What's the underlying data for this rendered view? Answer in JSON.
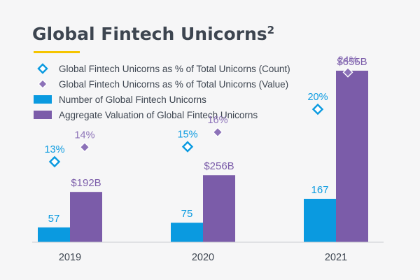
{
  "chart_data": {
    "type": "bar",
    "title": "Global Fintech Unicorns",
    "title_superscript": "2",
    "categories": [
      "2019",
      "2020",
      "2021"
    ],
    "series": [
      {
        "name": "Number of Global Fintech Unicorns",
        "kind": "bar",
        "color": "#0a9ae0",
        "values": [
          57,
          75,
          167
        ],
        "labels": [
          "57",
          "75",
          "167"
        ]
      },
      {
        "name": "Aggregate Valuation of Global Fintech Unicorns",
        "kind": "bar",
        "color": "#7b5ca9",
        "values": [
          192,
          256,
          655
        ],
        "unit": "$B",
        "labels": [
          "$192B",
          "$256B",
          "$655B"
        ]
      },
      {
        "name": "Global Fintech Unicorns as % of Total Unicorns (Count)",
        "kind": "marker",
        "marker": "diamond-outline",
        "color": "#0a9ae0",
        "values": [
          13,
          15,
          20
        ],
        "labels": [
          "13%",
          "15%",
          "20%"
        ]
      },
      {
        "name": "Global Fintech Unicorns as % of Total Unicorns (Value)",
        "kind": "marker",
        "marker": "diamond-filled",
        "color": "#8c72b8",
        "values": [
          14,
          16,
          24
        ],
        "labels": [
          "14%",
          "16%",
          "24%"
        ]
      }
    ],
    "legend_order": [
      2,
      3,
      0,
      1
    ],
    "legend_position": "top-left",
    "accent_underline_color": "#f5c500",
    "text_color": "#3d4550",
    "grid": false
  }
}
